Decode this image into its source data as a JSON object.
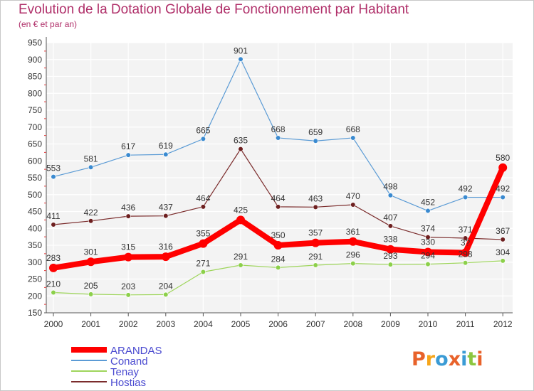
{
  "header": {
    "title": "Evolution de la Dotation Globale de Fonctionnement par Habitant",
    "subtitle": "(en € et par an)"
  },
  "logo": {
    "text": "Proxiti",
    "colors": [
      "#e8622a",
      "#f6a51a",
      "#3a9bd5",
      "#e8622a",
      "#3a9bd5",
      "#8cc63f",
      "#e8622a"
    ]
  },
  "chart_data": {
    "type": "line",
    "x": [
      "2000",
      "2001",
      "2002",
      "2003",
      "2004",
      "2005",
      "2006",
      "2007",
      "2008",
      "2009",
      "2010",
      "2011",
      "2012"
    ],
    "ylim": [
      150,
      950
    ],
    "yticks": [
      150,
      200,
      250,
      300,
      350,
      400,
      450,
      500,
      550,
      600,
      650,
      700,
      750,
      800,
      850,
      900,
      950
    ],
    "grid": true,
    "legend_position": "bottom-left",
    "series": [
      {
        "name": "ARANDAS",
        "color": "#ff0000",
        "values": [
          283,
          301,
          315,
          316,
          355,
          425,
          350,
          357,
          361,
          338,
          330,
          328,
          580
        ],
        "labels": [
          "283",
          "301",
          "315",
          "316",
          "355",
          "425",
          "350",
          "357",
          "361",
          "338",
          "330",
          "3?",
          "580"
        ]
      },
      {
        "name": "Conand",
        "color": "#5b9bd5",
        "values": [
          553,
          581,
          617,
          619,
          665,
          901,
          668,
          659,
          668,
          498,
          452,
          492,
          492
        ],
        "labels": [
          "553",
          "581",
          "617",
          "619",
          "665",
          "901",
          "668",
          "659",
          "668",
          "498",
          "452",
          "492",
          "492"
        ]
      },
      {
        "name": "Tenay",
        "color": "#9ed55b",
        "values": [
          210,
          205,
          203,
          204,
          271,
          291,
          284,
          291,
          296,
          293,
          294,
          298,
          304
        ],
        "labels": [
          "210",
          "205",
          "203",
          "204",
          "271",
          "291",
          "284",
          "291",
          "296",
          "293",
          "294",
          "298",
          "304"
        ]
      },
      {
        "name": "Hostias",
        "color": "#7b2c2c",
        "values": [
          411,
          422,
          436,
          437,
          464,
          635,
          464,
          463,
          470,
          407,
          374,
          371,
          367
        ],
        "labels": [
          "411",
          "422",
          "436",
          "437",
          "464",
          "635",
          "464",
          "463",
          "470",
          "407",
          "374",
          "371",
          "367"
        ]
      }
    ]
  }
}
